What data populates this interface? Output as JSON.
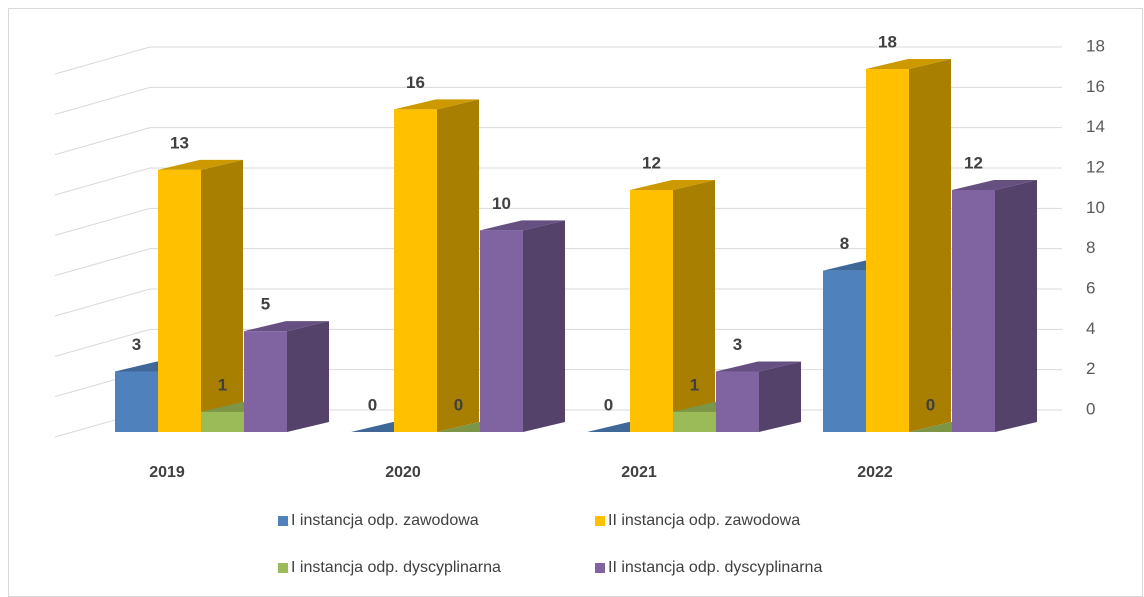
{
  "chart_data": {
    "type": "bar3d",
    "categories": [
      "2019",
      "2020",
      "2021",
      "2022"
    ],
    "series": [
      {
        "name": "I instancja odp. zawodowa",
        "color": "#4f81bd",
        "values": [
          3,
          0,
          0,
          8
        ]
      },
      {
        "name": "II instancja odp. zawodowa",
        "color": "#ffc000",
        "values": [
          13,
          16,
          12,
          18
        ]
      },
      {
        "name": "I instancja odp. dyscyplinarna",
        "color": "#9bbb59",
        "values": [
          1,
          0,
          1,
          0
        ]
      },
      {
        "name": "II instancja odp. dyscyplinarna",
        "color": "#8064a2",
        "values": [
          5,
          10,
          3,
          12
        ]
      }
    ],
    "ylim": [
      0,
      18
    ],
    "yticks": [
      0,
      2,
      4,
      6,
      8,
      10,
      12,
      14,
      16,
      18
    ],
    "grid": true,
    "legend": "bottom"
  }
}
